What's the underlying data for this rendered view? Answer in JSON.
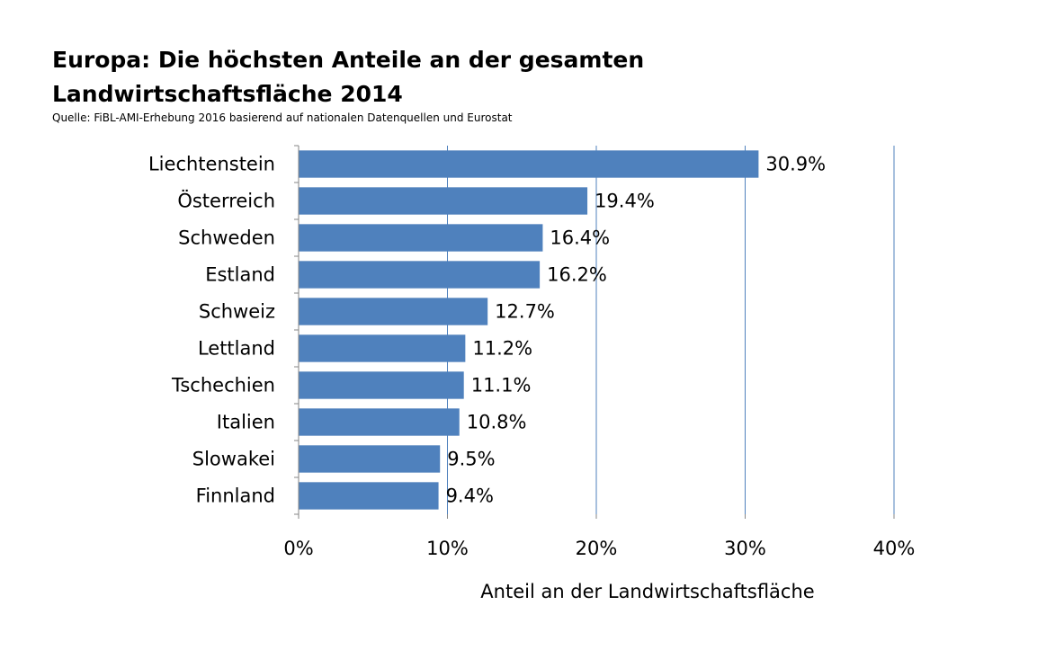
{
  "title_line1": "Europa: Die höchsten Anteile an der gesamten",
  "title_line2": "Landwirtschaftsfläche 2014",
  "source": "Quelle: FiBL-AMI-Erhebung 2016 basierend auf nationalen Datenquellen und Eurostat",
  "colors": {
    "bar": "#4f81bd",
    "grid": "#4f81bd",
    "axis": "#868686"
  },
  "chart_data": {
    "type": "bar",
    "orientation": "horizontal",
    "categories": [
      "Liechtenstein",
      "Österreich",
      "Schweden",
      "Estland",
      "Schweiz",
      "Lettland",
      "Tschechien",
      "Italien",
      "Slowakei",
      "Finnland"
    ],
    "values": [
      30.9,
      19.4,
      16.4,
      16.2,
      12.7,
      11.2,
      11.1,
      10.8,
      9.5,
      9.4
    ],
    "data_labels": [
      "30.9%",
      "19.4%",
      "16.4%",
      "16.2%",
      "12.7%",
      "11.2%",
      "11.1%",
      "10.8%",
      "9.5%",
      "9.4%"
    ],
    "xlabel": "Anteil an der Landwirtschaftsfläche",
    "ylabel": "",
    "xlim": [
      0,
      40
    ],
    "xticks": [
      0,
      10,
      20,
      30,
      40
    ],
    "xtick_labels": [
      "0%",
      "10%",
      "20%",
      "30%",
      "40%"
    ],
    "grid": true,
    "legend": "none"
  }
}
